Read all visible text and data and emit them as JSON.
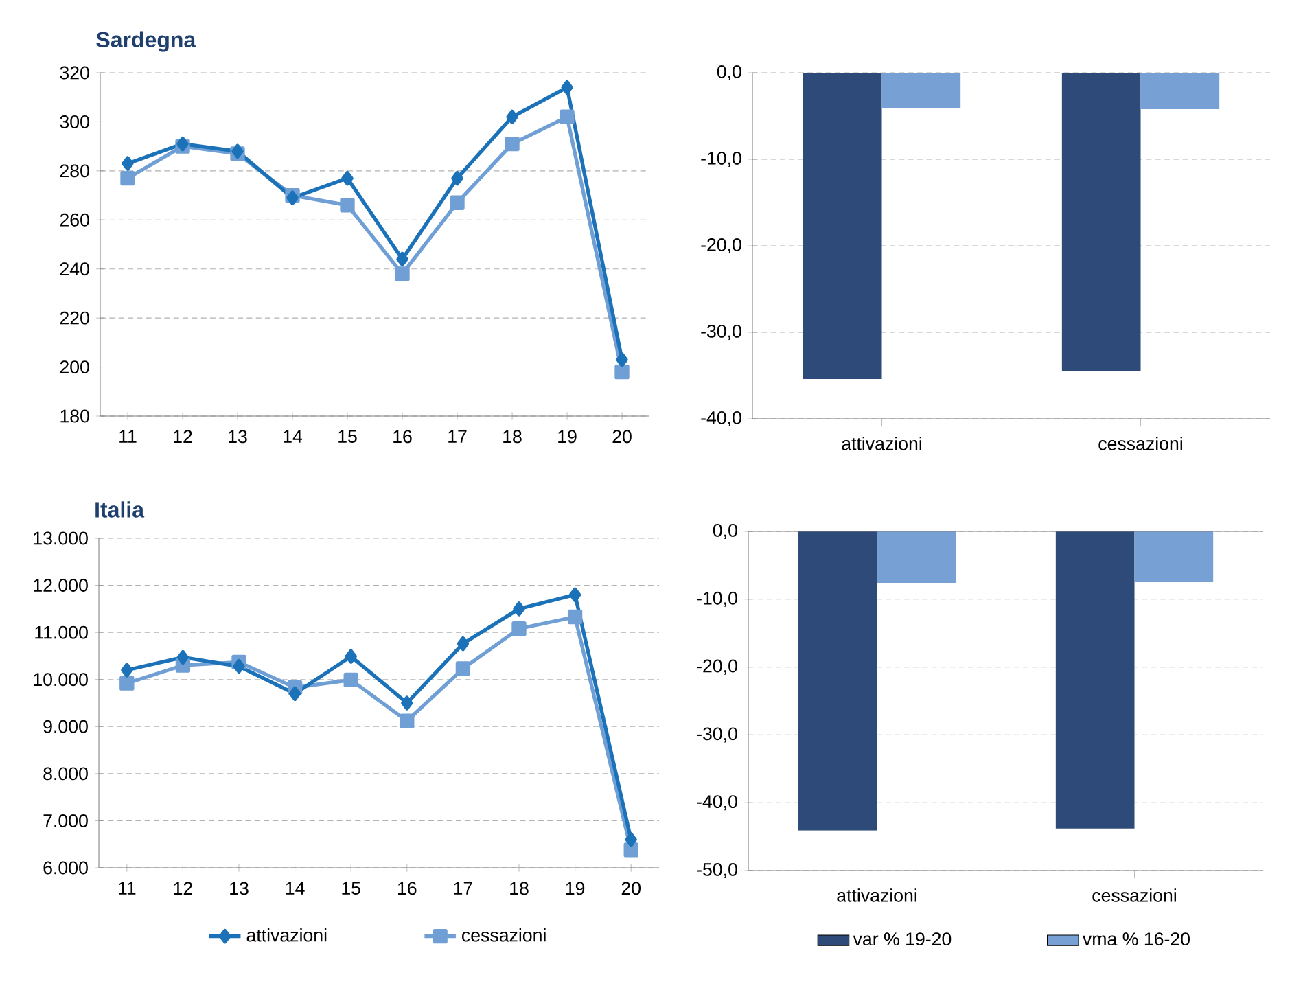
{
  "chart_data": [
    {
      "type": "line",
      "title": "Sardegna",
      "categories": [
        "11",
        "12",
        "13",
        "14",
        "15",
        "16",
        "17",
        "18",
        "19",
        "20"
      ],
      "ylim": [
        180,
        320
      ],
      "yticks": [
        180,
        200,
        220,
        240,
        260,
        280,
        300,
        320
      ],
      "grid": "y",
      "line_style": "solid",
      "series": [
        {
          "color": "#1b72b8",
          "marker": "diamond",
          "values": [
            283,
            291,
            288,
            269,
            277,
            244,
            277,
            302,
            314,
            203
          ]
        },
        {
          "color": "#6f9fd4",
          "marker": "square",
          "values": [
            277,
            290,
            287,
            270,
            266,
            238,
            267,
            291,
            302,
            198
          ]
        }
      ]
    },
    {
      "type": "bar",
      "categories": [
        "attivazioni",
        "cessazioni"
      ],
      "ylim": [
        -40,
        0
      ],
      "yticks": [
        {
          "value": -40,
          "label": "-40,0"
        },
        {
          "value": -30,
          "label": "-30,0"
        },
        {
          "value": -20,
          "label": "-20,0"
        },
        {
          "value": -10,
          "label": "-10,0"
        },
        {
          "value": 0,
          "label": "0,0"
        }
      ],
      "grid": "y",
      "series": [
        {
          "color": "#2e4a78",
          "values": [
            -35.4,
            -34.5
          ]
        },
        {
          "color": "#77a1d4",
          "values": [
            -4.1,
            -4.2
          ]
        }
      ]
    },
    {
      "type": "line",
      "title": "Italia",
      "categories": [
        "11",
        "12",
        "13",
        "14",
        "15",
        "16",
        "17",
        "18",
        "19",
        "20"
      ],
      "ylim": [
        6000,
        13000
      ],
      "yticks": [
        {
          "value": 6000,
          "label": "6.000"
        },
        {
          "value": 7000,
          "label": "7.000"
        },
        {
          "value": 8000,
          "label": "8.000"
        },
        {
          "value": 9000,
          "label": "9.000"
        },
        {
          "value": 10000,
          "label": "10.000"
        },
        {
          "value": 11000,
          "label": "11.000"
        },
        {
          "value": 12000,
          "label": "12.000"
        },
        {
          "value": 13000,
          "label": "13.000"
        }
      ],
      "grid": "y",
      "line_style": "solid",
      "legend": "bottom",
      "series": [
        {
          "name": "attivazioni",
          "color": "#1b72b8",
          "marker": "diamond",
          "values": [
            10200,
            10470,
            10280,
            9700,
            10490,
            9500,
            10760,
            11500,
            11800,
            6600
          ]
        },
        {
          "name": "cessazioni",
          "color": "#6f9fd4",
          "marker": "square",
          "values": [
            9920,
            10300,
            10370,
            9830,
            9990,
            9120,
            10230,
            11080,
            11330,
            6380
          ]
        }
      ]
    },
    {
      "type": "bar",
      "categories": [
        "attivazioni",
        "cessazioni"
      ],
      "ylim": [
        -50,
        0
      ],
      "yticks": [
        {
          "value": -50,
          "label": "-50,0"
        },
        {
          "value": -40,
          "label": "-40,0"
        },
        {
          "value": -30,
          "label": "-30,0"
        },
        {
          "value": -20,
          "label": "-20,0"
        },
        {
          "value": -10,
          "label": "-10,0"
        },
        {
          "value": 0,
          "label": "0,0"
        }
      ],
      "grid": "y",
      "legend": "bottom",
      "series": [
        {
          "name": "var % 19-20",
          "color": "#2e4a78",
          "values": [
            -44.1,
            -43.8
          ]
        },
        {
          "name": "vma % 16-20",
          "color": "#77a1d4",
          "values": [
            -7.6,
            -7.5
          ]
        }
      ]
    }
  ]
}
